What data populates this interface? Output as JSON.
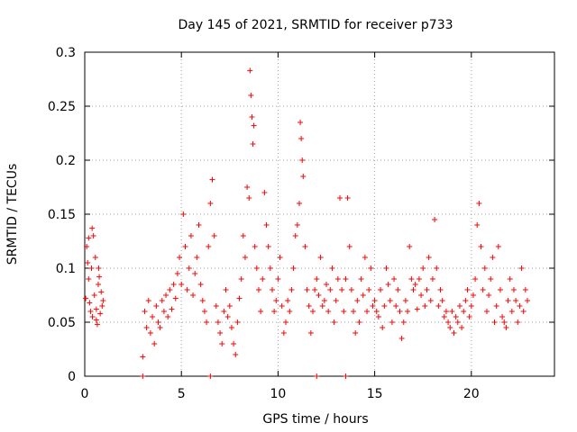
{
  "chart_data": {
    "type": "scatter",
    "title": "Day 145 of 2021, SRMTID for receiver p733",
    "xlabel": "GPS time / hours",
    "ylabel": "SRMTID / TECUs",
    "xlim": [
      0,
      24.3
    ],
    "ylim": [
      0,
      0.3
    ],
    "x_ticks": [
      0,
      5,
      10,
      15,
      20
    ],
    "y_ticks": [
      0,
      0.05,
      0.1,
      0.15,
      0.2,
      0.25,
      0.3
    ],
    "x_tick_labels": [
      "0",
      "5",
      "10",
      "15",
      "20"
    ],
    "y_tick_labels": [
      "0",
      "0.05",
      "0.1",
      "0.15",
      "0.2",
      "0.25",
      "0.3"
    ],
    "grid": true,
    "marker": "+",
    "color": "#ff0000",
    "series": [
      {
        "name": "SRMTID",
        "points": [
          [
            0.05,
            0.072
          ],
          [
            0.1,
            0.12
          ],
          [
            0.15,
            0.105
          ],
          [
            0.2,
            0.09
          ],
          [
            0.25,
            0.068
          ],
          [
            0.3,
            0.06
          ],
          [
            0.35,
            0.1
          ],
          [
            0.4,
            0.055
          ],
          [
            0.45,
            0.13
          ],
          [
            0.5,
            0.075
          ],
          [
            0.55,
            0.11
          ],
          [
            0.6,
            0.062
          ],
          [
            0.65,
            0.048
          ],
          [
            0.7,
            0.085
          ],
          [
            0.75,
            0.092
          ],
          [
            0.8,
            0.058
          ],
          [
            0.85,
            0.078
          ],
          [
            0.9,
            0.065
          ],
          [
            0.95,
            0.07
          ],
          [
            0.2,
            0.128
          ],
          [
            0.38,
            0.137
          ],
          [
            0.6,
            0.052
          ],
          [
            0.72,
            0.1
          ],
          [
            3.0,
            0.018
          ],
          [
            3.1,
            0.06
          ],
          [
            3.2,
            0.045
          ],
          [
            3.3,
            0.07
          ],
          [
            3.4,
            0.04
          ],
          [
            3.5,
            0.055
          ],
          [
            3.6,
            0.03
          ],
          [
            3.7,
            0.065
          ],
          [
            3.8,
            0.05
          ],
          [
            3.9,
            0.045
          ],
          [
            4.0,
            0.07
          ],
          [
            4.1,
            0.06
          ],
          [
            4.2,
            0.075
          ],
          [
            4.3,
            0.055
          ],
          [
            4.4,
            0.08
          ],
          [
            4.5,
            0.062
          ],
          [
            4.6,
            0.085
          ],
          [
            4.7,
            0.072
          ],
          [
            4.8,
            0.095
          ],
          [
            4.9,
            0.11
          ],
          [
            5.0,
            0.085
          ],
          [
            5.1,
            0.15
          ],
          [
            5.2,
            0.12
          ],
          [
            5.3,
            0.08
          ],
          [
            5.4,
            0.1
          ],
          [
            5.5,
            0.13
          ],
          [
            5.6,
            0.075
          ],
          [
            5.7,
            0.095
          ],
          [
            5.8,
            0.11
          ],
          [
            5.9,
            0.14
          ],
          [
            6.0,
            0.085
          ],
          [
            6.1,
            0.07
          ],
          [
            6.2,
            0.06
          ],
          [
            6.3,
            0.05
          ],
          [
            6.4,
            0.12
          ],
          [
            6.5,
            0.16
          ],
          [
            6.6,
            0.182
          ],
          [
            6.7,
            0.13
          ],
          [
            6.8,
            0.065
          ],
          [
            6.9,
            0.05
          ],
          [
            7.0,
            0.04
          ],
          [
            7.1,
            0.03
          ],
          [
            7.2,
            0.06
          ],
          [
            7.3,
            0.08
          ],
          [
            7.4,
            0.055
          ],
          [
            7.5,
            0.065
          ],
          [
            7.6,
            0.045
          ],
          [
            7.7,
            0.03
          ],
          [
            7.8,
            0.02
          ],
          [
            7.9,
            0.05
          ],
          [
            8.0,
            0.072
          ],
          [
            8.1,
            0.09
          ],
          [
            8.2,
            0.13
          ],
          [
            8.3,
            0.11
          ],
          [
            8.4,
            0.175
          ],
          [
            8.5,
            0.165
          ],
          [
            8.55,
            0.283
          ],
          [
            8.6,
            0.26
          ],
          [
            8.65,
            0.24
          ],
          [
            8.7,
            0.215
          ],
          [
            8.75,
            0.232
          ],
          [
            8.8,
            0.12
          ],
          [
            8.9,
            0.1
          ],
          [
            9.0,
            0.08
          ],
          [
            9.1,
            0.06
          ],
          [
            9.2,
            0.09
          ],
          [
            9.3,
            0.17
          ],
          [
            9.4,
            0.14
          ],
          [
            9.5,
            0.12
          ],
          [
            9.6,
            0.1
          ],
          [
            9.7,
            0.08
          ],
          [
            9.8,
            0.06
          ],
          [
            9.9,
            0.07
          ],
          [
            10.0,
            0.09
          ],
          [
            10.1,
            0.11
          ],
          [
            10.2,
            0.065
          ],
          [
            10.3,
            0.04
          ],
          [
            10.4,
            0.05
          ],
          [
            10.5,
            0.07
          ],
          [
            10.6,
            0.06
          ],
          [
            10.7,
            0.08
          ],
          [
            10.8,
            0.1
          ],
          [
            10.9,
            0.13
          ],
          [
            11.0,
            0.14
          ],
          [
            11.1,
            0.16
          ],
          [
            11.15,
            0.235
          ],
          [
            11.2,
            0.22
          ],
          [
            11.25,
            0.2
          ],
          [
            11.3,
            0.185
          ],
          [
            11.4,
            0.12
          ],
          [
            11.5,
            0.08
          ],
          [
            11.6,
            0.065
          ],
          [
            11.7,
            0.04
          ],
          [
            11.8,
            0.06
          ],
          [
            11.9,
            0.08
          ],
          [
            12.0,
            0.09
          ],
          [
            12.1,
            0.075
          ],
          [
            12.2,
            0.11
          ],
          [
            12.3,
            0.065
          ],
          [
            12.4,
            0.07
          ],
          [
            12.5,
            0.085
          ],
          [
            12.6,
            0.06
          ],
          [
            12.7,
            0.08
          ],
          [
            12.8,
            0.1
          ],
          [
            12.9,
            0.05
          ],
          [
            13.0,
            0.07
          ],
          [
            13.1,
            0.09
          ],
          [
            13.2,
            0.165
          ],
          [
            13.3,
            0.08
          ],
          [
            13.4,
            0.06
          ],
          [
            13.5,
            0.09
          ],
          [
            13.6,
            0.165
          ],
          [
            13.7,
            0.12
          ],
          [
            13.8,
            0.08
          ],
          [
            13.9,
            0.06
          ],
          [
            14.0,
            0.04
          ],
          [
            14.1,
            0.07
          ],
          [
            14.2,
            0.05
          ],
          [
            14.3,
            0.09
          ],
          [
            14.4,
            0.075
          ],
          [
            14.5,
            0.11
          ],
          [
            14.6,
            0.06
          ],
          [
            14.7,
            0.08
          ],
          [
            14.8,
            0.1
          ],
          [
            14.9,
            0.065
          ],
          [
            15.0,
            0.07
          ],
          [
            15.1,
            0.06
          ],
          [
            15.2,
            0.055
          ],
          [
            15.3,
            0.08
          ],
          [
            15.4,
            0.045
          ],
          [
            15.5,
            0.065
          ],
          [
            15.6,
            0.1
          ],
          [
            15.7,
            0.085
          ],
          [
            15.8,
            0.07
          ],
          [
            15.9,
            0.05
          ],
          [
            16.0,
            0.09
          ],
          [
            16.1,
            0.065
          ],
          [
            16.2,
            0.08
          ],
          [
            16.3,
            0.06
          ],
          [
            16.4,
            0.035
          ],
          [
            16.5,
            0.05
          ],
          [
            16.6,
            0.07
          ],
          [
            16.7,
            0.06
          ],
          [
            16.8,
            0.12
          ],
          [
            16.9,
            0.09
          ],
          [
            17.0,
            0.08
          ],
          [
            17.1,
            0.085
          ],
          [
            17.2,
            0.062
          ],
          [
            17.3,
            0.09
          ],
          [
            17.4,
            0.075
          ],
          [
            17.5,
            0.1
          ],
          [
            17.6,
            0.065
          ],
          [
            17.7,
            0.08
          ],
          [
            17.8,
            0.11
          ],
          [
            17.9,
            0.07
          ],
          [
            18.0,
            0.09
          ],
          [
            18.1,
            0.145
          ],
          [
            18.2,
            0.1
          ],
          [
            18.3,
            0.065
          ],
          [
            18.4,
            0.08
          ],
          [
            18.5,
            0.07
          ],
          [
            18.6,
            0.055
          ],
          [
            18.7,
            0.06
          ],
          [
            18.8,
            0.05
          ],
          [
            18.9,
            0.045
          ],
          [
            19.0,
            0.06
          ],
          [
            19.1,
            0.04
          ],
          [
            19.2,
            0.055
          ],
          [
            19.3,
            0.05
          ],
          [
            19.4,
            0.065
          ],
          [
            19.5,
            0.045
          ],
          [
            19.6,
            0.06
          ],
          [
            19.7,
            0.07
          ],
          [
            19.8,
            0.08
          ],
          [
            19.9,
            0.055
          ],
          [
            20.0,
            0.065
          ],
          [
            20.1,
            0.075
          ],
          [
            20.2,
            0.09
          ],
          [
            20.3,
            0.14
          ],
          [
            20.4,
            0.16
          ],
          [
            20.5,
            0.12
          ],
          [
            20.6,
            0.08
          ],
          [
            20.7,
            0.1
          ],
          [
            20.8,
            0.06
          ],
          [
            20.9,
            0.075
          ],
          [
            21.0,
            0.09
          ],
          [
            21.1,
            0.11
          ],
          [
            21.2,
            0.05
          ],
          [
            21.3,
            0.065
          ],
          [
            21.4,
            0.12
          ],
          [
            21.5,
            0.08
          ],
          [
            21.6,
            0.055
          ],
          [
            21.7,
            0.05
          ],
          [
            21.8,
            0.045
          ],
          [
            21.9,
            0.07
          ],
          [
            22.0,
            0.09
          ],
          [
            22.1,
            0.06
          ],
          [
            22.2,
            0.08
          ],
          [
            22.3,
            0.07
          ],
          [
            22.4,
            0.05
          ],
          [
            22.5,
            0.065
          ],
          [
            22.6,
            0.1
          ],
          [
            22.7,
            0.06
          ],
          [
            22.8,
            0.08
          ],
          [
            22.9,
            0.07
          ],
          [
            3.0,
            0.0
          ],
          [
            6.5,
            0.0
          ],
          [
            12.0,
            0.0
          ],
          [
            13.5,
            0.0
          ]
        ]
      }
    ]
  }
}
